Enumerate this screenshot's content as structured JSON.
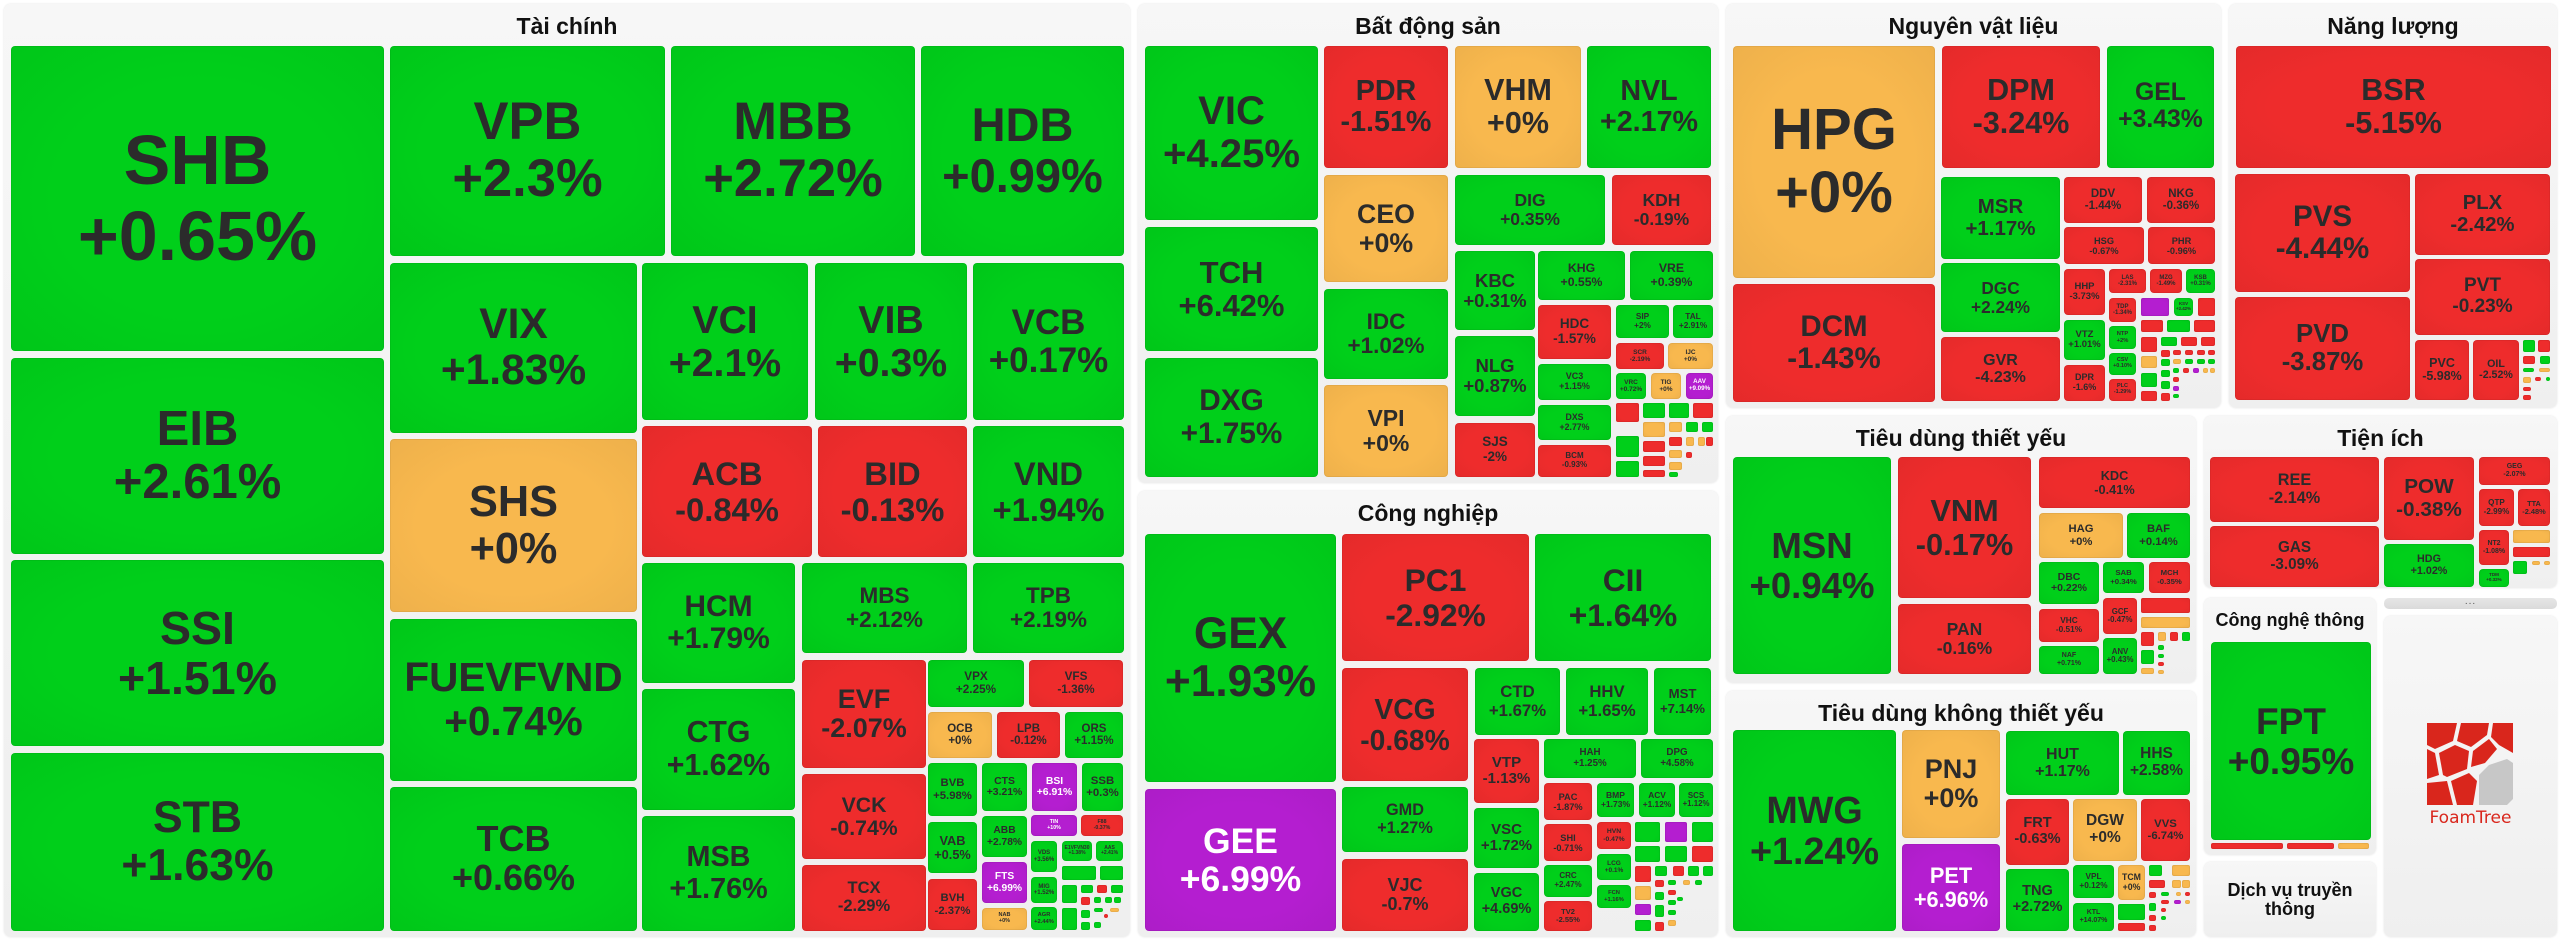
{
  "colors": {
    "g": "#00cf1a",
    "r": "#ee2c2c",
    "o": "#f8b84e",
    "p": "#b41ed0"
  },
  "color_legend": {
    "g": "increase",
    "r": "decrease",
    "o": "unchanged",
    "p": "ceiling"
  },
  "sectors": [
    {
      "title": "Tài chính",
      "tiles": [
        {
          "t": "SHB",
          "c": "+0.65%",
          "k": "g"
        },
        {
          "t": "EIB",
          "c": "+2.61%",
          "k": "g"
        },
        {
          "t": "SSI",
          "c": "+1.51%",
          "k": "g"
        },
        {
          "t": "STB",
          "c": "+1.63%",
          "k": "g"
        },
        {
          "t": "VPB",
          "c": "+2.3%",
          "k": "g"
        },
        {
          "t": "MBB",
          "c": "+2.72%",
          "k": "g"
        },
        {
          "t": "HDB",
          "c": "+0.99%",
          "k": "g"
        },
        {
          "t": "VIX",
          "c": "+1.83%",
          "k": "g"
        },
        {
          "t": "SHS",
          "c": "+0%",
          "k": "o"
        },
        {
          "t": "FUEVFVND",
          "c": "+0.74%",
          "k": "g"
        },
        {
          "t": "TCB",
          "c": "+0.66%",
          "k": "g"
        },
        {
          "t": "VCI",
          "c": "+2.1%",
          "k": "g"
        },
        {
          "t": "VIB",
          "c": "+0.3%",
          "k": "g"
        },
        {
          "t": "VCB",
          "c": "+0.17%",
          "k": "g"
        },
        {
          "t": "ACB",
          "c": "-0.84%",
          "k": "r"
        },
        {
          "t": "BID",
          "c": "-0.13%",
          "k": "r"
        },
        {
          "t": "VND",
          "c": "+1.94%",
          "k": "g"
        },
        {
          "t": "HCM",
          "c": "+1.79%",
          "k": "g"
        },
        {
          "t": "CTG",
          "c": "+1.62%",
          "k": "g"
        },
        {
          "t": "MSB",
          "c": "+1.76%",
          "k": "g"
        },
        {
          "t": "MBS",
          "c": "+2.12%",
          "k": "g"
        },
        {
          "t": "TPB",
          "c": "+2.19%",
          "k": "g"
        },
        {
          "t": "EVF",
          "c": "-2.07%",
          "k": "r"
        },
        {
          "t": "VCK",
          "c": "-0.74%",
          "k": "r"
        },
        {
          "t": "TCX",
          "c": "-2.29%",
          "k": "r"
        },
        {
          "t": "VPX",
          "c": "+2.25%",
          "k": "g"
        },
        {
          "t": "VFS",
          "c": "-1.36%",
          "k": "r"
        },
        {
          "t": "OCB",
          "c": "+0%",
          "k": "o"
        },
        {
          "t": "LPB",
          "c": "-0.12%",
          "k": "r"
        },
        {
          "t": "ORS",
          "c": "+1.15%",
          "k": "g"
        },
        {
          "t": "BVB",
          "c": "+5.98%",
          "k": "g"
        },
        {
          "t": "CTS",
          "c": "+3.21%",
          "k": "g"
        },
        {
          "t": "BSI",
          "c": "+6.91%",
          "k": "p"
        },
        {
          "t": "SSB",
          "c": "+0.3%",
          "k": "g"
        },
        {
          "t": "TIN",
          "c": "+10%",
          "k": "p"
        },
        {
          "t": "F88",
          "c": "-0.37%",
          "k": "r"
        },
        {
          "t": "VAB",
          "c": "+0.5%",
          "k": "g"
        },
        {
          "t": "ABB",
          "c": "+2.78%",
          "k": "g"
        },
        {
          "t": "FTS",
          "c": "+6.99%",
          "k": "p"
        },
        {
          "t": "BVH",
          "c": "-2.37%",
          "k": "r"
        },
        {
          "t": "NAB",
          "c": "+0%",
          "k": "o"
        },
        {
          "t": "VDS",
          "c": "+3.56%",
          "k": "g"
        },
        {
          "t": "E1VFVN30",
          "c": "+1.38%",
          "k": "g"
        },
        {
          "t": "AAS",
          "c": "+2.41%",
          "k": "g"
        },
        {
          "t": "MIG",
          "c": "+1.52%",
          "k": "g"
        },
        {
          "t": "AGR",
          "c": "+2.44%",
          "k": "g"
        }
      ]
    },
    {
      "title": "Bất động sản",
      "tiles": [
        {
          "t": "VIC",
          "c": "+4.25%",
          "k": "g"
        },
        {
          "t": "TCH",
          "c": "+6.42%",
          "k": "g"
        },
        {
          "t": "DXG",
          "c": "+1.75%",
          "k": "g"
        },
        {
          "t": "PDR",
          "c": "-1.51%",
          "k": "r"
        },
        {
          "t": "VHM",
          "c": "+0%",
          "k": "o"
        },
        {
          "t": "NVL",
          "c": "+2.17%",
          "k": "g"
        },
        {
          "t": "CEO",
          "c": "+0%",
          "k": "o"
        },
        {
          "t": "IDC",
          "c": "+1.02%",
          "k": "g"
        },
        {
          "t": "VPI",
          "c": "+0%",
          "k": "o"
        },
        {
          "t": "DIG",
          "c": "+0.35%",
          "k": "g"
        },
        {
          "t": "KDH",
          "c": "-0.19%",
          "k": "r"
        },
        {
          "t": "KBC",
          "c": "+0.31%",
          "k": "g"
        },
        {
          "t": "NLG",
          "c": "+0.87%",
          "k": "g"
        },
        {
          "t": "SJS",
          "c": "-2%",
          "k": "r"
        },
        {
          "t": "KHG",
          "c": "+0.55%",
          "k": "g"
        },
        {
          "t": "VRE",
          "c": "+0.39%",
          "k": "g"
        },
        {
          "t": "HDC",
          "c": "-1.57%",
          "k": "r"
        },
        {
          "t": "SIP",
          "c": "+2%",
          "k": "g"
        },
        {
          "t": "TAL",
          "c": "+2.91%",
          "k": "g"
        },
        {
          "t": "SCR",
          "c": "-2.19%",
          "k": "r"
        },
        {
          "t": "IJC",
          "c": "+0%",
          "k": "o"
        },
        {
          "t": "VC3",
          "c": "+1.15%",
          "k": "g"
        },
        {
          "t": "DXS",
          "c": "+2.77%",
          "k": "g"
        },
        {
          "t": "BCM",
          "c": "-0.93%",
          "k": "r"
        },
        {
          "t": "VRC",
          "c": "+0.72%",
          "k": "g"
        },
        {
          "t": "TIG",
          "c": "+0%",
          "k": "o"
        },
        {
          "t": "AAV",
          "c": "+9.09%",
          "k": "p"
        }
      ]
    },
    {
      "title": "Công nghiệp",
      "tiles": [
        {
          "t": "GEX",
          "c": "+1.93%",
          "k": "g"
        },
        {
          "t": "GEE",
          "c": "+6.99%",
          "k": "p"
        },
        {
          "t": "PC1",
          "c": "-2.92%",
          "k": "r"
        },
        {
          "t": "CII",
          "c": "+1.64%",
          "k": "g"
        },
        {
          "t": "VCG",
          "c": "-0.68%",
          "k": "r"
        },
        {
          "t": "GMD",
          "c": "+1.27%",
          "k": "g"
        },
        {
          "t": "VJC",
          "c": "-0.7%",
          "k": "r"
        },
        {
          "t": "CTD",
          "c": "+1.67%",
          "k": "g"
        },
        {
          "t": "HHV",
          "c": "+1.65%",
          "k": "g"
        },
        {
          "t": "MST",
          "c": "+7.14%",
          "k": "g"
        },
        {
          "t": "VTP",
          "c": "-1.13%",
          "k": "r"
        },
        {
          "t": "VSC",
          "c": "+1.72%",
          "k": "g"
        },
        {
          "t": "VGC",
          "c": "+4.69%",
          "k": "g"
        },
        {
          "t": "HAH",
          "c": "+1.25%",
          "k": "g"
        },
        {
          "t": "DPG",
          "c": "+4.58%",
          "k": "g"
        },
        {
          "t": "PAC",
          "c": "-1.87%",
          "k": "r"
        },
        {
          "t": "BMP",
          "c": "+1.73%",
          "k": "g"
        },
        {
          "t": "ACV",
          "c": "+1.12%",
          "k": "g"
        },
        {
          "t": "SCS",
          "c": "+1.12%",
          "k": "g"
        },
        {
          "t": "SHI",
          "c": "-0.71%",
          "k": "r"
        },
        {
          "t": "CRC",
          "c": "+2.47%",
          "k": "g"
        },
        {
          "t": "TV2",
          "c": "-2.55%",
          "k": "r"
        },
        {
          "t": "HVN",
          "c": "-0.47%",
          "k": "r"
        },
        {
          "t": "LCG",
          "c": "+0.1%",
          "k": "g"
        },
        {
          "t": "FCN",
          "c": "+1.16%",
          "k": "g"
        }
      ]
    },
    {
      "title": "Nguyên vật liệu",
      "tiles": [
        {
          "t": "HPG",
          "c": "+0%",
          "k": "o"
        },
        {
          "t": "DCM",
          "c": "-1.43%",
          "k": "r"
        },
        {
          "t": "DPM",
          "c": "-3.24%",
          "k": "r"
        },
        {
          "t": "GEL",
          "c": "+3.43%",
          "k": "g"
        },
        {
          "t": "MSR",
          "c": "+1.17%",
          "k": "g"
        },
        {
          "t": "DGC",
          "c": "+2.24%",
          "k": "g"
        },
        {
          "t": "GVR",
          "c": "-4.23%",
          "k": "r"
        },
        {
          "t": "DDV",
          "c": "-1.44%",
          "k": "r"
        },
        {
          "t": "NKG",
          "c": "-0.36%",
          "k": "r"
        },
        {
          "t": "HSG",
          "c": "-0.67%",
          "k": "r"
        },
        {
          "t": "PHR",
          "c": "-0.96%",
          "k": "r"
        },
        {
          "t": "HHP",
          "c": "-3.73%",
          "k": "r"
        },
        {
          "t": "VTZ",
          "c": "+1.01%",
          "k": "g"
        },
        {
          "t": "DPR",
          "c": "-1.6%",
          "k": "r"
        },
        {
          "t": "LAS",
          "c": "-2.31%",
          "k": "r"
        },
        {
          "t": "MZG",
          "c": "-1.49%",
          "k": "r"
        },
        {
          "t": "KSB",
          "c": "+0.31%",
          "k": "g"
        },
        {
          "t": "TDP",
          "c": "-1.34%",
          "k": "r"
        },
        {
          "t": "KSV",
          "c": "+2.42%",
          "k": "g"
        },
        {
          "t": "NTP",
          "c": "+2%",
          "k": "g"
        },
        {
          "t": "CSV",
          "c": "+0.10%",
          "k": "g"
        },
        {
          "t": "PLC",
          "c": "-1.29%",
          "k": "r"
        }
      ]
    },
    {
      "title": "Năng lượng",
      "tiles": [
        {
          "t": "BSR",
          "c": "-5.15%",
          "k": "r"
        },
        {
          "t": "PVS",
          "c": "-4.44%",
          "k": "r"
        },
        {
          "t": "PVD",
          "c": "-3.87%",
          "k": "r"
        },
        {
          "t": "PLX",
          "c": "-2.42%",
          "k": "r"
        },
        {
          "t": "PVT",
          "c": "-0.23%",
          "k": "r"
        },
        {
          "t": "PVC",
          "c": "-5.98%",
          "k": "r"
        },
        {
          "t": "OIL",
          "c": "-2.52%",
          "k": "r"
        }
      ]
    },
    {
      "title": "Tiêu dùng thiết yếu",
      "tiles": [
        {
          "t": "MSN",
          "c": "+0.94%",
          "k": "g"
        },
        {
          "t": "VNM",
          "c": "-0.17%",
          "k": "r"
        },
        {
          "t": "PAN",
          "c": "-0.16%",
          "k": "r"
        },
        {
          "t": "KDC",
          "c": "-0.41%",
          "k": "r"
        },
        {
          "t": "HAG",
          "c": "+0%",
          "k": "o"
        },
        {
          "t": "BAF",
          "c": "+0.14%",
          "k": "g"
        },
        {
          "t": "DBC",
          "c": "+0.22%",
          "k": "g"
        },
        {
          "t": "VHC",
          "c": "-0.51%",
          "k": "r"
        },
        {
          "t": "NAF",
          "c": "+0.71%",
          "k": "g"
        },
        {
          "t": "SAB",
          "c": "+0.34%",
          "k": "g"
        },
        {
          "t": "MCH",
          "c": "-0.35%",
          "k": "r"
        },
        {
          "t": "GCF",
          "c": "-0.47%",
          "k": "r"
        },
        {
          "t": "ANV",
          "c": "+0.43%",
          "k": "g"
        }
      ]
    },
    {
      "title": "Tiêu dùng không thiết yếu",
      "tiles": [
        {
          "t": "MWG",
          "c": "+1.24%",
          "k": "g"
        },
        {
          "t": "PNJ",
          "c": "+0%",
          "k": "o"
        },
        {
          "t": "PET",
          "c": "+6.96%",
          "k": "p"
        },
        {
          "t": "HUT",
          "c": "+1.17%",
          "k": "g"
        },
        {
          "t": "HHS",
          "c": "+2.58%",
          "k": "g"
        },
        {
          "t": "FRT",
          "c": "-0.63%",
          "k": "r"
        },
        {
          "t": "DGW",
          "c": "+0%",
          "k": "o"
        },
        {
          "t": "VVS",
          "c": "-6.74%",
          "k": "r"
        },
        {
          "t": "TNG",
          "c": "+2.72%",
          "k": "g"
        },
        {
          "t": "VPL",
          "c": "+0.12%",
          "k": "g"
        },
        {
          "t": "KTL",
          "c": "+14.07%",
          "k": "g"
        },
        {
          "t": "TCM",
          "c": "+0%",
          "k": "o"
        }
      ]
    },
    {
      "title": "Tiện ích",
      "tiles": [
        {
          "t": "REE",
          "c": "-2.14%",
          "k": "r"
        },
        {
          "t": "GAS",
          "c": "-3.09%",
          "k": "r"
        },
        {
          "t": "POW",
          "c": "-0.38%",
          "k": "r"
        },
        {
          "t": "HDG",
          "c": "+1.02%",
          "k": "g"
        },
        {
          "t": "GEG",
          "c": "-2.07%",
          "k": "r"
        },
        {
          "t": "QTP",
          "c": "-2.99%",
          "k": "r"
        },
        {
          "t": "TTA",
          "c": "-2.48%",
          "k": "r"
        },
        {
          "t": "NT2",
          "c": "-1.08%",
          "k": "r"
        },
        {
          "t": "TDM",
          "c": "+0.32%",
          "k": "g"
        }
      ]
    },
    {
      "title": "Công nghệ thông tin",
      "tiles": [
        {
          "t": "FPT",
          "c": "+0.95%",
          "k": "g"
        }
      ]
    }
  ],
  "collapsed_group": {
    "title": "Dịch vụ truyền thông"
  },
  "more_button": "...",
  "logo": {
    "text": "FoamTree"
  }
}
